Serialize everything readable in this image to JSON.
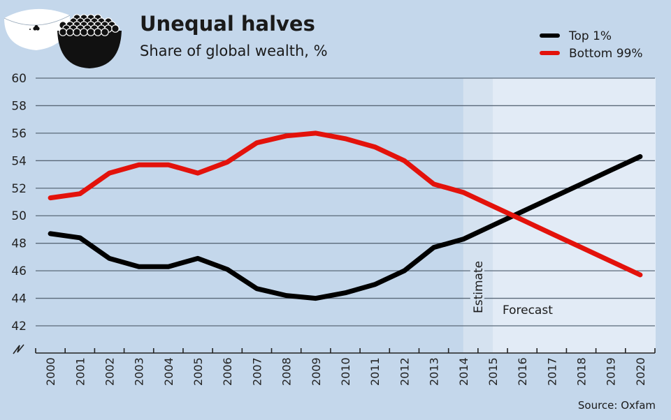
{
  "chart_data": {
    "type": "line",
    "title": "Unequal halves",
    "subtitle": "Share of global wealth, %",
    "xlabel": "",
    "ylabel": "",
    "x": [
      "2000",
      "2001",
      "2002",
      "2003",
      "2004",
      "2005",
      "2006",
      "2007",
      "2008",
      "2009",
      "2010",
      "2011",
      "2012",
      "2013",
      "2014",
      "2015",
      "2016",
      "2017",
      "2018",
      "2019",
      "2020"
    ],
    "ylim": [
      42,
      60
    ],
    "yticks": [
      "60",
      "58",
      "56",
      "54",
      "52",
      "50",
      "48",
      "46",
      "44",
      "42"
    ],
    "ytick_values": [
      60,
      58,
      56,
      54,
      52,
      50,
      48,
      46,
      44,
      42
    ],
    "y_axis_break": true,
    "grid": true,
    "legend_position": "top-right",
    "series": [
      {
        "name": "Top 1%",
        "color": "#000000",
        "values": [
          48.7,
          48.4,
          46.9,
          46.3,
          46.3,
          46.9,
          46.1,
          44.7,
          44.2,
          44.0,
          44.4,
          45.0,
          46.0,
          47.7,
          48.3,
          49.3,
          50.3,
          51.3,
          52.3,
          53.3,
          54.3
        ]
      },
      {
        "name": "Bottom 99%",
        "color": "#e3120b",
        "values": [
          51.3,
          51.6,
          53.1,
          53.7,
          53.7,
          53.1,
          53.9,
          55.3,
          55.8,
          56.0,
          55.6,
          55.0,
          54.0,
          52.3,
          51.7,
          50.7,
          49.7,
          48.7,
          47.7,
          46.7,
          45.7
        ]
      }
    ],
    "regions": [
      {
        "label": "Estimate",
        "from": "2014",
        "to": "2015",
        "color": "#d5e2f0"
      },
      {
        "label": "Forecast",
        "from": "2015",
        "to": "2020",
        "color": "#e2ebf6"
      }
    ],
    "source": "Source: Oxfam"
  },
  "colors": {
    "background": "#c4d7eb",
    "gridline": "#5a6878"
  }
}
